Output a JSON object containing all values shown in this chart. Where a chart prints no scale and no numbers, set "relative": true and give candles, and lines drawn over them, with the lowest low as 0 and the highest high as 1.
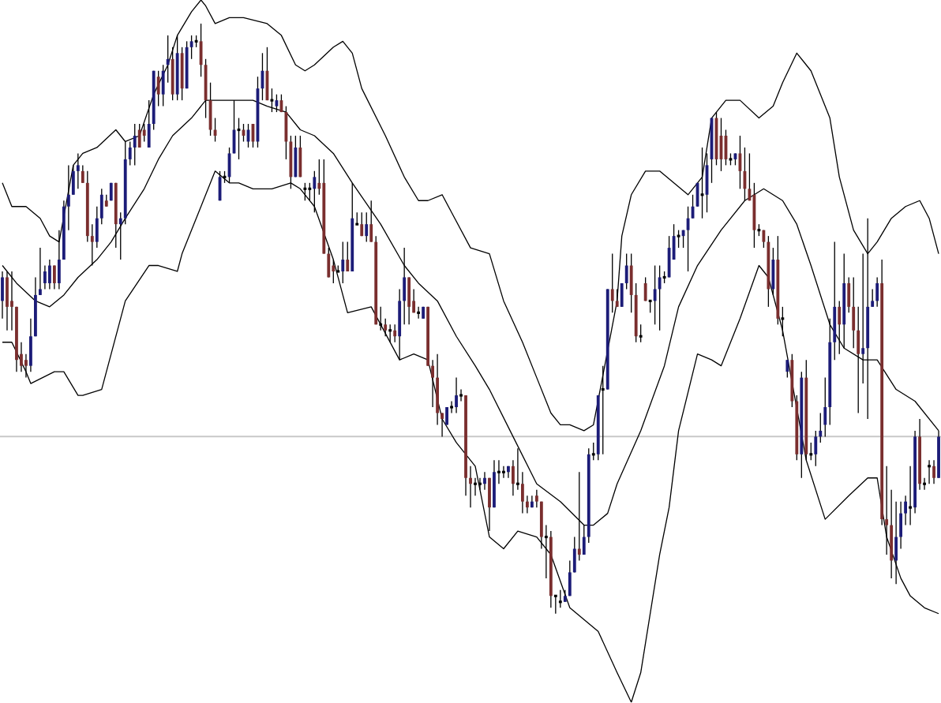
{
  "chart_data": {
    "type": "candlestick",
    "relative": true,
    "categories": [
      null,
      null,
      null,
      null,
      null,
      null,
      null,
      null,
      null,
      null,
      null,
      null,
      null,
      null,
      null,
      null,
      null,
      null,
      null,
      null,
      null,
      null,
      null,
      null,
      null,
      null,
      null,
      null,
      null,
      null,
      null,
      null,
      null,
      null,
      null,
      null,
      null,
      null,
      null,
      null,
      null,
      null,
      null,
      null,
      null,
      null,
      null,
      null,
      null,
      null,
      null,
      null,
      null,
      null,
      null,
      null,
      null,
      null,
      null,
      null,
      null,
      null,
      null,
      null,
      null,
      null,
      null,
      null,
      null,
      null,
      null,
      null,
      null,
      null,
      null,
      null,
      null,
      null,
      null,
      null,
      null,
      null,
      null,
      null,
      null,
      null,
      null,
      null,
      null,
      null,
      null,
      null,
      null,
      null,
      null,
      null,
      null,
      null,
      null,
      null,
      null,
      null,
      null,
      null,
      null,
      null,
      null,
      null,
      null,
      null,
      null,
      null,
      null,
      null,
      null,
      null,
      null,
      null,
      null,
      null,
      null,
      null,
      null,
      null,
      null,
      null,
      null,
      null,
      null,
      null,
      null,
      null,
      null,
      null,
      null,
      null,
      null,
      null,
      null,
      null,
      null,
      null,
      null,
      null,
      null,
      null,
      null,
      null,
      null,
      null,
      null,
      null,
      null,
      null,
      null,
      null,
      null,
      null,
      null,
      null,
      null,
      null,
      null,
      null,
      null,
      null,
      null,
      null,
      null,
      null,
      null,
      null,
      null,
      null,
      null,
      null,
      null,
      null,
      null,
      null,
      null,
      null,
      null,
      null,
      null,
      null,
      null,
      null,
      null,
      null,
      null,
      null,
      null,
      null,
      null,
      null,
      null,
      null,
      null
    ],
    "ohlc": [
      [
        0.53,
        0.58,
        0.5,
        0.57
      ],
      [
        0.57,
        0.58,
        0.48,
        0.52
      ],
      [
        0.53,
        0.58,
        0.48,
        0.52
      ],
      [
        0.52,
        0.52,
        0.41,
        0.43
      ],
      [
        0.44,
        0.46,
        0.41,
        0.42
      ],
      [
        0.43,
        0.44,
        0.4,
        0.42
      ],
      [
        0.42,
        0.5,
        0.41,
        0.47
      ],
      [
        0.47,
        0.57,
        0.47,
        0.54
      ],
      [
        0.54,
        0.62,
        0.54,
        0.55
      ],
      [
        0.56,
        0.59,
        0.55,
        0.58
      ],
      [
        0.56,
        0.6,
        0.55,
        0.59
      ],
      [
        0.59,
        0.59,
        0.55,
        0.56
      ],
      [
        0.56,
        0.65,
        0.55,
        0.6
      ],
      [
        0.6,
        0.7,
        0.6,
        0.69
      ],
      [
        0.69,
        0.76,
        0.65,
        0.71
      ],
      [
        0.71,
        0.76,
        0.71,
        0.75
      ],
      [
        0.75,
        0.78,
        0.72,
        0.76
      ],
      [
        0.75,
        0.76,
        0.73,
        0.73
      ],
      [
        0.73,
        0.75,
        0.63,
        0.64
      ],
      [
        0.64,
        0.66,
        0.59,
        0.63
      ],
      [
        0.63,
        0.69,
        0.62,
        0.67
      ],
      [
        0.67,
        0.72,
        0.66,
        0.71
      ],
      [
        0.7,
        0.71,
        0.69,
        0.69
      ],
      [
        0.7,
        0.73,
        0.7,
        0.73
      ],
      [
        0.73,
        0.73,
        0.62,
        0.66
      ],
      [
        0.66,
        0.68,
        0.6,
        0.67
      ],
      [
        0.67,
        0.8,
        0.66,
        0.77
      ],
      [
        0.77,
        0.8,
        0.76,
        0.79
      ],
      [
        0.79,
        0.83,
        0.76,
        0.81
      ],
      [
        0.82,
        0.83,
        0.79,
        0.79
      ],
      [
        0.82,
        0.83,
        0.8,
        0.81
      ],
      [
        0.79,
        0.87,
        0.79,
        0.83
      ],
      [
        0.83,
        0.92,
        0.82,
        0.92
      ],
      [
        0.91,
        0.92,
        0.86,
        0.88
      ],
      [
        0.88,
        0.93,
        0.86,
        0.92
      ],
      [
        0.93,
        0.98,
        0.9,
        0.94
      ],
      [
        0.94,
        0.96,
        0.87,
        0.88
      ],
      [
        0.88,
        0.98,
        0.87,
        0.95
      ],
      [
        0.95,
        0.96,
        0.87,
        0.89
      ],
      [
        0.89,
        0.97,
        0.89,
        0.96
      ],
      [
        0.96,
        0.98,
        0.94,
        0.97
      ],
      [
        0.97,
        0.98,
        0.96,
        0.97
      ],
      [
        0.97,
        1.0,
        0.91,
        0.93
      ],
      [
        0.93,
        0.94,
        0.84,
        0.87
      ],
      [
        0.87,
        0.9,
        0.81,
        0.82
      ],
      [
        0.82,
        0.84,
        0.8,
        0.81
      ],
      [
        0.7,
        0.75,
        0.7,
        0.74
      ],
      [
        0.74,
        0.75,
        0.73,
        0.74
      ],
      [
        0.74,
        0.79,
        0.73,
        0.78
      ],
      [
        0.78,
        0.87,
        0.78,
        0.82
      ],
      [
        0.82,
        0.84,
        0.77,
        0.82
      ],
      [
        0.82,
        0.83,
        0.8,
        0.81
      ],
      [
        0.8,
        0.83,
        0.79,
        0.82
      ],
      [
        0.83,
        0.83,
        0.79,
        0.8
      ],
      [
        0.8,
        0.91,
        0.79,
        0.89
      ],
      [
        0.89,
        0.95,
        0.87,
        0.92
      ],
      [
        0.92,
        0.96,
        0.87,
        0.87
      ],
      [
        0.87,
        0.89,
        0.85,
        0.87
      ],
      [
        0.86,
        0.88,
        0.85,
        0.87
      ],
      [
        0.87,
        0.88,
        0.85,
        0.85
      ],
      [
        0.85,
        0.86,
        0.77,
        0.8
      ],
      [
        0.8,
        0.81,
        0.72,
        0.74
      ],
      [
        0.74,
        0.81,
        0.74,
        0.79
      ],
      [
        0.79,
        0.81,
        0.74,
        0.74
      ],
      [
        0.72,
        0.73,
        0.7,
        0.72
      ],
      [
        0.72,
        0.73,
        0.7,
        0.72
      ],
      [
        0.72,
        0.75,
        0.68,
        0.74
      ],
      [
        0.73,
        0.77,
        0.71,
        0.72
      ],
      [
        0.73,
        0.77,
        0.61,
        0.61
      ],
      [
        0.61,
        0.62,
        0.57,
        0.57
      ],
      [
        0.59,
        0.6,
        0.56,
        0.58
      ],
      [
        0.58,
        0.59,
        0.58,
        0.58
      ],
      [
        0.58,
        0.63,
        0.56,
        0.6
      ],
      [
        0.6,
        0.63,
        0.58,
        0.58
      ],
      [
        0.58,
        0.73,
        0.58,
        0.67
      ],
      [
        0.66,
        0.68,
        0.66,
        0.66
      ],
      [
        0.66,
        0.68,
        0.64,
        0.64
      ],
      [
        0.64,
        0.68,
        0.63,
        0.66
      ],
      [
        0.66,
        0.7,
        0.63,
        0.63
      ],
      [
        0.63,
        0.64,
        0.49,
        0.49
      ],
      [
        0.49,
        0.52,
        0.48,
        0.49
      ],
      [
        0.49,
        0.5,
        0.47,
        0.48
      ],
      [
        0.48,
        0.49,
        0.46,
        0.48
      ],
      [
        0.48,
        0.49,
        0.46,
        0.47
      ],
      [
        0.47,
        0.55,
        0.43,
        0.53
      ],
      [
        0.53,
        0.62,
        0.49,
        0.57
      ],
      [
        0.57,
        0.57,
        0.49,
        0.52
      ],
      [
        0.53,
        0.55,
        0.51,
        0.51
      ],
      [
        0.51,
        0.52,
        0.5,
        0.51
      ],
      [
        0.5,
        0.52,
        0.5,
        0.52
      ],
      [
        0.52,
        0.52,
        0.42,
        0.42
      ],
      [
        0.42,
        0.43,
        0.35,
        0.4
      ],
      [
        0.4,
        0.44,
        0.32,
        0.34
      ],
      [
        0.34,
        0.34,
        0.3,
        0.33
      ],
      [
        0.32,
        0.35,
        0.32,
        0.35
      ],
      [
        0.35,
        0.36,
        0.34,
        0.35
      ],
      [
        0.35,
        0.4,
        0.34,
        0.37
      ],
      [
        0.37,
        0.38,
        0.36,
        0.37
      ],
      [
        0.37,
        0.37,
        0.2,
        0.23
      ],
      [
        0.23,
        0.25,
        0.18,
        0.22
      ],
      [
        0.22,
        0.23,
        0.2,
        0.22
      ],
      [
        0.22,
        0.23,
        0.21,
        0.22
      ],
      [
        0.22,
        0.24,
        0.21,
        0.23
      ],
      [
        0.23,
        0.23,
        0.14,
        0.18
      ],
      [
        0.18,
        0.26,
        0.18,
        0.24
      ],
      [
        0.24,
        0.26,
        0.22,
        0.24
      ],
      [
        0.24,
        0.25,
        0.23,
        0.24
      ],
      [
        0.24,
        0.25,
        0.23,
        0.25
      ],
      [
        0.25,
        0.26,
        0.2,
        0.22
      ],
      [
        0.22,
        0.28,
        0.21,
        0.22
      ],
      [
        0.22,
        0.24,
        0.17,
        0.19
      ],
      [
        0.19,
        0.2,
        0.17,
        0.18
      ],
      [
        0.18,
        0.2,
        0.18,
        0.19
      ],
      [
        0.2,
        0.21,
        0.18,
        0.19
      ],
      [
        0.19,
        0.19,
        0.11,
        0.13
      ],
      [
        0.13,
        0.15,
        0.06,
        0.13
      ],
      [
        0.13,
        0.14,
        0.01,
        0.03
      ],
      [
        0.03,
        0.03,
        0.0,
        0.03
      ],
      [
        0.02,
        0.04,
        0.01,
        0.02
      ],
      [
        0.02,
        0.04,
        0.02,
        0.03
      ],
      [
        0.03,
        0.09,
        0.03,
        0.07
      ],
      [
        0.07,
        0.13,
        0.07,
        0.11
      ],
      [
        0.11,
        0.24,
        0.09,
        0.1
      ],
      [
        0.1,
        0.15,
        0.1,
        0.13
      ],
      [
        0.13,
        0.28,
        0.12,
        0.27
      ],
      [
        0.27,
        0.29,
        0.26,
        0.27
      ],
      [
        0.27,
        0.37,
        0.26,
        0.37
      ],
      [
        0.38,
        0.42,
        0.27,
        0.38
      ],
      [
        0.38,
        0.55,
        0.38,
        0.55
      ],
      [
        0.55,
        0.61,
        0.51,
        0.53
      ],
      [
        0.53,
        0.55,
        0.52,
        0.52
      ],
      [
        0.52,
        0.56,
        0.52,
        0.56
      ],
      [
        0.56,
        0.61,
        0.55,
        0.59
      ],
      [
        0.59,
        0.61,
        0.51,
        0.54
      ],
      [
        0.54,
        0.56,
        0.46,
        0.47
      ],
      [
        0.47,
        0.49,
        0.46,
        0.47
      ],
      [
        0.56,
        0.57,
        0.53,
        0.53
      ],
      [
        0.53,
        0.53,
        0.51,
        0.53
      ],
      [
        0.53,
        0.59,
        0.49,
        0.55
      ],
      [
        0.55,
        0.59,
        0.48,
        0.57
      ],
      [
        0.57,
        0.58,
        0.56,
        0.57
      ],
      [
        0.57,
        0.64,
        0.57,
        0.62
      ],
      [
        0.6,
        0.66,
        0.6,
        0.64
      ],
      [
        0.64,
        0.65,
        0.62,
        0.64
      ],
      [
        0.64,
        0.65,
        0.62,
        0.65
      ],
      [
        0.65,
        0.69,
        0.58,
        0.67
      ],
      [
        0.67,
        0.71,
        0.67,
        0.69
      ],
      [
        0.69,
        0.73,
        0.69,
        0.73
      ],
      [
        0.71,
        0.79,
        0.67,
        0.71
      ],
      [
        0.71,
        0.78,
        0.68,
        0.76
      ],
      [
        0.77,
        0.84,
        0.73,
        0.84
      ],
      [
        0.84,
        0.85,
        0.76,
        0.77
      ],
      [
        0.81,
        0.84,
        0.75,
        0.77
      ],
      [
        0.81,
        0.82,
        0.76,
        0.77
      ],
      [
        0.77,
        0.78,
        0.76,
        0.77
      ],
      [
        0.77,
        0.78,
        0.76,
        0.78
      ],
      [
        0.78,
        0.81,
        0.72,
        0.75
      ],
      [
        0.75,
        0.79,
        0.7,
        0.72
      ],
      [
        0.72,
        0.78,
        0.7,
        0.7
      ],
      [
        0.71,
        0.73,
        0.62,
        0.65
      ],
      [
        0.65,
        0.66,
        0.64,
        0.65
      ],
      [
        0.65,
        0.65,
        0.62,
        0.63
      ],
      [
        0.63,
        0.64,
        0.52,
        0.55
      ],
      [
        0.55,
        0.62,
        0.54,
        0.6
      ],
      [
        0.6,
        0.64,
        0.49,
        0.5
      ],
      [
        0.5,
        0.52,
        0.47,
        0.5
      ],
      [
        0.41,
        0.43,
        0.4,
        0.43
      ],
      [
        0.43,
        0.44,
        0.35,
        0.36
      ],
      [
        0.36,
        0.37,
        0.26,
        0.27
      ],
      [
        0.27,
        0.41,
        0.23,
        0.4
      ],
      [
        0.4,
        0.43,
        0.26,
        0.27
      ],
      [
        0.27,
        0.29,
        0.26,
        0.27
      ],
      [
        0.27,
        0.31,
        0.25,
        0.3
      ],
      [
        0.3,
        0.34,
        0.29,
        0.31
      ],
      [
        0.32,
        0.4,
        0.3,
        0.35
      ],
      [
        0.35,
        0.5,
        0.32,
        0.46
      ],
      [
        0.46,
        0.63,
        0.43,
        0.52
      ],
      [
        0.52,
        0.53,
        0.44,
        0.49
      ],
      [
        0.49,
        0.61,
        0.45,
        0.56
      ],
      [
        0.56,
        0.57,
        0.51,
        0.52
      ],
      [
        0.52,
        0.57,
        0.45,
        0.48
      ],
      [
        0.48,
        0.52,
        0.34,
        0.44
      ],
      [
        0.44,
        0.61,
        0.39,
        0.45
      ],
      [
        0.45,
        0.67,
        0.33,
        0.52
      ],
      [
        0.52,
        0.55,
        0.52,
        0.53
      ],
      [
        0.53,
        0.57,
        0.52,
        0.56
      ],
      [
        0.56,
        0.6,
        0.15,
        0.16
      ],
      [
        0.16,
        0.25,
        0.1,
        0.15
      ],
      [
        0.15,
        0.21,
        0.06,
        0.09
      ],
      [
        0.09,
        0.19,
        0.05,
        0.13
      ],
      [
        0.13,
        0.19,
        0.11,
        0.17
      ],
      [
        0.17,
        0.2,
        0.15,
        0.19
      ],
      [
        0.18,
        0.25,
        0.15,
        0.18
      ],
      [
        0.18,
        0.31,
        0.17,
        0.3
      ],
      [
        0.3,
        0.33,
        0.21,
        0.22
      ],
      [
        0.22,
        0.23,
        0.21,
        0.22
      ],
      [
        0.25,
        0.26,
        0.22,
        0.25
      ],
      [
        0.25,
        0.26,
        0.22,
        0.23
      ],
      [
        0.23,
        0.31,
        0.23,
        0.3
      ]
    ],
    "colors": [
      "#1c1c78",
      "#7a2e2e",
      "#7a2e2e",
      "#7a2e2e",
      "#7a2e2e",
      "#7a2e2e",
      "#1c1c78",
      "#1c1c78",
      "#1c1c78",
      "#1c1c78",
      "#1c1c78",
      "#7a2e2e",
      "#1c1c78",
      "#1c1c78",
      "#1c1c78",
      "#1c1c78",
      "#1c1c78",
      "#7a2e2e",
      "#7a2e2e",
      "#7a2e2e",
      "#1c1c78",
      "#1c1c78",
      "#7a2e2e",
      "#1c1c78",
      "#7a2e2e",
      "#1c1c78",
      "#1c1c78",
      "#1c1c78",
      "#1c1c78",
      "#7a2e2e",
      "#7a2e2e",
      "#1c1c78",
      "#1c1c78",
      "#7a2e2e",
      "#1c1c78",
      "#1c1c78",
      "#7a2e2e",
      "#1c1c78",
      "#7a2e2e",
      "#1c1c78",
      "#1c1c78",
      "#000000",
      "#7a2e2e",
      "#7a2e2e",
      "#7a2e2e",
      "#7a2e2e",
      "#1c1c78",
      "#000000",
      "#1c1c78",
      "#1c1c78",
      "#000000",
      "#7a2e2e",
      "#1c1c78",
      "#7a2e2e",
      "#1c1c78",
      "#1c1c78",
      "#7a2e2e",
      "#000000",
      "#1c1c78",
      "#7a2e2e",
      "#7a2e2e",
      "#7a2e2e",
      "#1c1c78",
      "#7a2e2e",
      "#000000",
      "#000000",
      "#1c1c78",
      "#7a2e2e",
      "#7a2e2e",
      "#7a2e2e",
      "#7a2e2e",
      "#000000",
      "#1c1c78",
      "#7a2e2e",
      "#1c1c78",
      "#000000",
      "#7a2e2e",
      "#1c1c78",
      "#7a2e2e",
      "#7a2e2e",
      "#000000",
      "#7a2e2e",
      "#000000",
      "#7a2e2e",
      "#1c1c78",
      "#1c1c78",
      "#7a2e2e",
      "#7a2e2e",
      "#000000",
      "#1c1c78",
      "#7a2e2e",
      "#7a2e2e",
      "#7a2e2e",
      "#7a2e2e",
      "#1c1c78",
      "#000000",
      "#1c1c78",
      "#000000",
      "#7a2e2e",
      "#7a2e2e",
      "#000000",
      "#000000",
      "#1c1c78",
      "#7a2e2e",
      "#1c1c78",
      "#000000",
      "#000000",
      "#1c1c78",
      "#7a2e2e",
      "#000000",
      "#7a2e2e",
      "#7a2e2e",
      "#1c1c78",
      "#7a2e2e",
      "#7a2e2e",
      "#000000",
      "#7a2e2e",
      "#000000",
      "#000000",
      "#1c1c78",
      "#1c1c78",
      "#1c1c78",
      "#7a2e2e",
      "#1c1c78",
      "#1c1c78",
      "#000000",
      "#1c1c78",
      "#000000",
      "#1c1c78",
      "#7a2e2e",
      "#7a2e2e",
      "#1c1c78",
      "#1c1c78",
      "#7a2e2e",
      "#7a2e2e",
      "#000000",
      "#7a2e2e",
      "#000000",
      "#1c1c78",
      "#1c1c78",
      "#000000",
      "#1c1c78",
      "#1c1c78",
      "#000000",
      "#1c1c78",
      "#1c1c78",
      "#1c1c78",
      "#1c1c78",
      "#000000",
      "#1c1c78",
      "#1c1c78",
      "#7a2e2e",
      "#7a2e2e",
      "#7a2e2e",
      "#000000",
      "#1c1c78",
      "#7a2e2e",
      "#7a2e2e",
      "#7a2e2e",
      "#7a2e2e",
      "#000000",
      "#7a2e2e",
      "#7a2e2e",
      "#1c1c78",
      "#7a2e2e",
      "#000000",
      "#1c1c78",
      "#7a2e2e",
      "#7a2e2e",
      "#1c1c78",
      "#7a2e2e",
      "#000000",
      "#1c1c78",
      "#1c1c78",
      "#1c1c78",
      "#1c1c78",
      "#1c1c78",
      "#7a2e2e",
      "#1c1c78",
      "#7a2e2e",
      "#7a2e2e",
      "#7a2e2e",
      "#1c1c78",
      "#1c1c78",
      "#1c1c78",
      "#1c1c78",
      "#7a2e2e",
      "#7a2e2e",
      "#7a2e2e",
      "#1c1c78",
      "#1c1c78",
      "#1c1c78",
      "#000000",
      "#1c1c78",
      "#7a2e2e",
      "#000000",
      "#000000",
      "#7a2e2e",
      "#1c1c78"
    ],
    "series": [
      {
        "type": "line",
        "color": "#000000",
        "values": [
          0.73,
          null,
          0.69,
          null,
          null,
          0.69,
          null,
          null,
          0.67,
          null,
          0.64,
          null,
          0.63,
          null,
          null,
          0.76,
          null,
          0.78,
          null,
          null,
          0.79,
          null,
          null,
          null,
          0.82,
          null,
          0.8,
          null,
          null,
          0.81,
          null,
          null,
          0.88,
          null,
          null,
          0.93,
          null,
          0.98,
          null,
          null,
          1.02,
          null,
          1.04,
          1.03,
          null,
          1.0,
          null,
          null,
          1.01,
          null,
          null,
          1.01,
          null,
          null,
          null,
          null,
          1.0,
          null,
          null,
          0.98,
          null,
          null,
          0.93,
          null,
          0.92,
          null,
          0.93,
          null,
          null,
          null,
          0.96,
          null,
          0.97,
          null,
          0.95,
          null,
          0.89,
          null,
          null,
          null,
          null,
          0.81,
          null,
          null,
          null,
          0.74,
          null,
          null,
          0.7,
          null,
          0.7,
          null,
          null,
          0.71,
          null,
          0.68,
          null,
          null,
          null,
          0.62,
          null,
          null,
          null,
          0.61,
          null,
          null,
          0.53,
          null,
          null,
          null,
          0.46,
          null,
          null,
          0.4,
          null,
          null,
          0.34,
          null,
          0.32,
          null,
          0.32,
          null,
          null,
          0.31,
          null,
          0.32,
          null,
          null,
          null,
          null,
          0.53,
          0.64,
          null,
          0.71,
          null,
          null,
          0.75,
          null,
          null,
          0.75,
          null,
          null,
          0.73,
          null,
          null,
          0.71,
          null,
          null,
          0.74,
          null,
          0.84,
          null,
          null,
          0.87,
          null,
          null,
          0.87,
          null,
          null,
          null,
          0.84,
          null,
          null,
          0.86,
          null,
          0.9,
          null,
          null,
          0.95,
          null,
          null,
          0.92,
          null,
          null,
          null,
          0.84,
          null,
          0.74,
          null,
          null,
          0.65,
          null,
          null,
          0.61,
          null,
          0.63,
          null,
          null,
          0.67,
          null,
          null,
          0.69,
          null,
          null,
          0.7,
          null,
          0.67,
          null,
          0.61
        ]
      },
      {
        "type": "line",
        "color": "#000000",
        "values": [
          0.59,
          null,
          null,
          0.56,
          null,
          null,
          null,
          0.53,
          null,
          null,
          0.52,
          null,
          null,
          0.54,
          null,
          null,
          0.57,
          null,
          null,
          null,
          0.6,
          null,
          null,
          0.63,
          null,
          null,
          0.67,
          null,
          null,
          null,
          0.72,
          null,
          null,
          0.77,
          null,
          null,
          0.81,
          null,
          null,
          null,
          0.84,
          null,
          null,
          0.87,
          null,
          0.87,
          null,
          null,
          null,
          null,
          0.87,
          null,
          null,
          0.87,
          null,
          null,
          0.86,
          null,
          null,
          null,
          0.85,
          null,
          null,
          0.82,
          null,
          null,
          0.81,
          null,
          null,
          null,
          0.78,
          null,
          null,
          null,
          0.73,
          null,
          null,
          null,
          null,
          null,
          0.66,
          null,
          null,
          null,
          null,
          0.59,
          null,
          null,
          0.56,
          null,
          null,
          null,
          0.53,
          null,
          null,
          null,
          0.47,
          null,
          null,
          null,
          0.42,
          null,
          null,
          0.38,
          null,
          null,
          null,
          null,
          0.3,
          null,
          null,
          null,
          null,
          0.22,
          null,
          null,
          null,
          null,
          0.19,
          null,
          null,
          null,
          null,
          0.15,
          null,
          0.15,
          null,
          null,
          0.17,
          null,
          0.22,
          null,
          null,
          null,
          null,
          0.31,
          null,
          null,
          null,
          null,
          0.42,
          null,
          null,
          0.52,
          null,
          null,
          null,
          0.59,
          null,
          null,
          null,
          null,
          0.65,
          null,
          null,
          null,
          null,
          0.7,
          null,
          null,
          null,
          0.72,
          null,
          null,
          null,
          0.7,
          null,
          null,
          0.66,
          null,
          null,
          0.59,
          null,
          null,
          null,
          0.49,
          null,
          null,
          0.45,
          null,
          null,
          null,
          0.43,
          null,
          null,
          0.43,
          null,
          null,
          null,
          0.38,
          null,
          null,
          null,
          0.36,
          null,
          null,
          null,
          null,
          0.31
        ]
      },
      {
        "type": "line",
        "color": "#000000",
        "values": [
          0.46,
          null,
          0.46,
          null,
          null,
          0.41,
          0.39,
          null,
          null,
          null,
          null,
          0.41,
          null,
          0.41,
          null,
          null,
          0.37,
          0.37,
          null,
          null,
          null,
          0.38,
          null,
          null,
          null,
          null,
          0.53,
          null,
          null,
          null,
          null,
          0.59,
          null,
          0.59,
          null,
          null,
          null,
          0.58,
          0.61,
          null,
          null,
          null,
          null,
          null,
          0.73,
          0.75,
          null,
          null,
          0.73,
          null,
          0.73,
          null,
          null,
          0.72,
          null,
          null,
          null,
          0.72,
          null,
          null,
          null,
          0.73,
          null,
          0.72,
          null,
          null,
          0.69,
          null,
          null,
          null,
          0.6,
          null,
          null,
          0.51,
          null,
          null,
          null,
          null,
          0.52,
          null,
          null,
          null,
          null,
          null,
          0.43,
          null,
          null,
          0.44,
          null,
          null,
          0.43,
          null,
          null,
          0.33,
          null,
          null,
          0.29,
          null,
          null,
          null,
          0.25,
          null,
          null,
          0.13,
          null,
          null,
          0.11,
          null,
          null,
          0.14,
          null,
          null,
          null,
          0.13,
          null,
          null,
          0.1,
          null,
          null,
          null,
          0.01,
          null,
          null,
          null,
          null,
          null,
          -0.03,
          null,
          null,
          null,
          -0.1,
          null,
          null,
          -0.15,
          null,
          -0.1,
          null,
          null,
          null,
          0.1,
          null,
          0.18,
          null,
          0.31,
          null,
          null,
          null,
          0.44,
          null,
          null,
          0.43,
          null,
          0.42,
          null,
          null,
          null,
          0.5,
          null,
          null,
          null,
          0.59,
          null,
          0.57,
          null,
          null,
          0.48,
          null,
          null,
          null,
          null,
          0.26,
          null,
          null,
          null,
          0.16,
          null,
          null,
          null,
          null,
          0.2,
          null,
          null,
          null,
          0.23,
          null,
          0.23,
          null,
          0.13,
          null,
          null,
          0.06,
          null,
          0.03,
          null,
          null,
          0.01,
          null,
          null,
          0.0
        ]
      }
    ],
    "ref_lines": [
      {
        "axis": "y",
        "value": 0.3,
        "color": "#c8c8c8"
      }
    ]
  }
}
